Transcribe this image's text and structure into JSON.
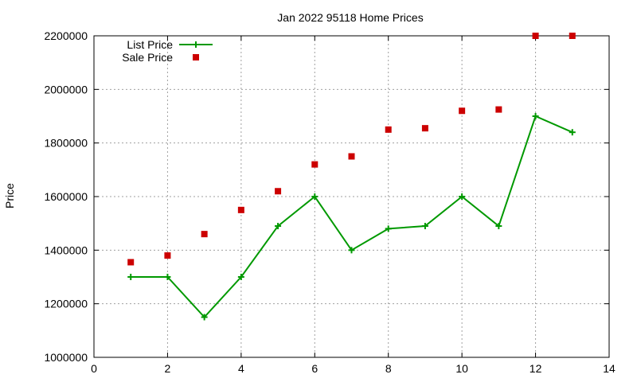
{
  "chart_data": {
    "type": "line",
    "title": "Jan 2022 95118 Home Prices",
    "xlabel": "",
    "ylabel": "Price",
    "xlim": [
      0,
      14
    ],
    "ylim": [
      1000000,
      2200000
    ],
    "xticks": [
      0,
      2,
      4,
      6,
      8,
      10,
      12,
      14
    ],
    "yticks": [
      1000000,
      1200000,
      1400000,
      1600000,
      1800000,
      2000000,
      2200000
    ],
    "grid": true,
    "legend_position": "top-left",
    "series": [
      {
        "name": "List Price",
        "style": "line-points",
        "color": "#009900",
        "marker": "plus",
        "x": [
          1,
          2,
          3,
          4,
          5,
          6,
          7,
          8,
          9,
          10,
          11,
          12,
          13
        ],
        "y": [
          1300000,
          1300000,
          1150000,
          1300000,
          1490000,
          1600000,
          1400000,
          1480000,
          1490000,
          1600000,
          1490000,
          1900000,
          1840000
        ]
      },
      {
        "name": "Sale Price",
        "style": "points",
        "color": "#cc0000",
        "marker": "square",
        "x": [
          1,
          2,
          3,
          4,
          5,
          6,
          7,
          8,
          9,
          10,
          11,
          12,
          13
        ],
        "y": [
          1355000,
          1380000,
          1460000,
          1550000,
          1620000,
          1720000,
          1750000,
          1850000,
          1855000,
          1920000,
          1925000,
          2200000,
          2200000
        ]
      }
    ]
  }
}
